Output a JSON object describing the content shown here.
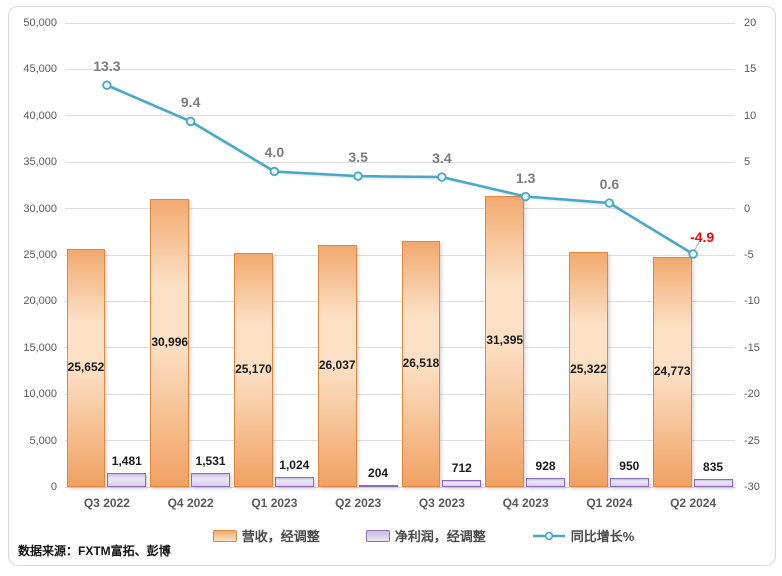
{
  "chart_data": {
    "type": "bar+line",
    "categories": [
      "Q3 2022",
      "Q4 2022",
      "Q1 2023",
      "Q2 2023",
      "Q3 2023",
      "Q4 2023",
      "Q1 2024",
      "Q2 2024"
    ],
    "series": [
      {
        "name": "营收，经调整",
        "type": "bar",
        "axis": "left",
        "values": [
          25652,
          30996,
          25170,
          26037,
          26518,
          31395,
          25322,
          24773
        ],
        "labels": [
          "25,652",
          "30,996",
          "25,170",
          "26,037",
          "26,518",
          "31,395",
          "25,322",
          "24,773"
        ],
        "label_position": "center",
        "border_color": "#e2873e",
        "fill_top": "#f2a96f",
        "fill_light": "#fbe0c5",
        "fill_bottom": "#f0a162"
      },
      {
        "name": "净利润，经调整",
        "type": "bar",
        "axis": "left",
        "values": [
          1481,
          1531,
          1024,
          204,
          712,
          928,
          950,
          835
        ],
        "labels": [
          "1,481",
          "1,531",
          "1,024",
          "204",
          "712",
          "928",
          "950",
          "835"
        ],
        "label_position": "above",
        "border_color": "#8b6db8",
        "fill_top": "#c9bbe2",
        "fill_light": "#e9e3f4",
        "fill_bottom": "#d9cdea"
      },
      {
        "name": "同比增长%",
        "type": "line",
        "axis": "right",
        "values": [
          13.3,
          9.4,
          4.0,
          3.5,
          3.4,
          1.3,
          0.6,
          -4.9
        ],
        "labels": [
          "13.3",
          "9.4",
          "4.0",
          "3.5",
          "3.4",
          "1.3",
          "0.6",
          "-4.9"
        ],
        "line_color": "#45a9c7",
        "marker_fill": "#eaf5f9",
        "label_color": "#7c7c7c",
        "negative_label_color": "#ff0000"
      }
    ],
    "left_axis": {
      "min": 0,
      "max": 50000,
      "step": 5000,
      "tick_labels": [
        "0",
        "5,000",
        "10,000",
        "15,000",
        "20,000",
        "25,000",
        "30,000",
        "35,000",
        "40,000",
        "45,000",
        "50,000"
      ]
    },
    "right_axis": {
      "min": -30,
      "max": 20,
      "step": 5,
      "tick_labels": [
        "-30",
        "-25",
        "-20",
        "-15",
        "-10",
        "-5",
        "0",
        "5",
        "10",
        "15",
        "20"
      ]
    },
    "grid": true,
    "grid_color": "#dcdcdc",
    "legend_position": "bottom"
  },
  "source_note": "数据来源：FXTM富拓、彭博"
}
